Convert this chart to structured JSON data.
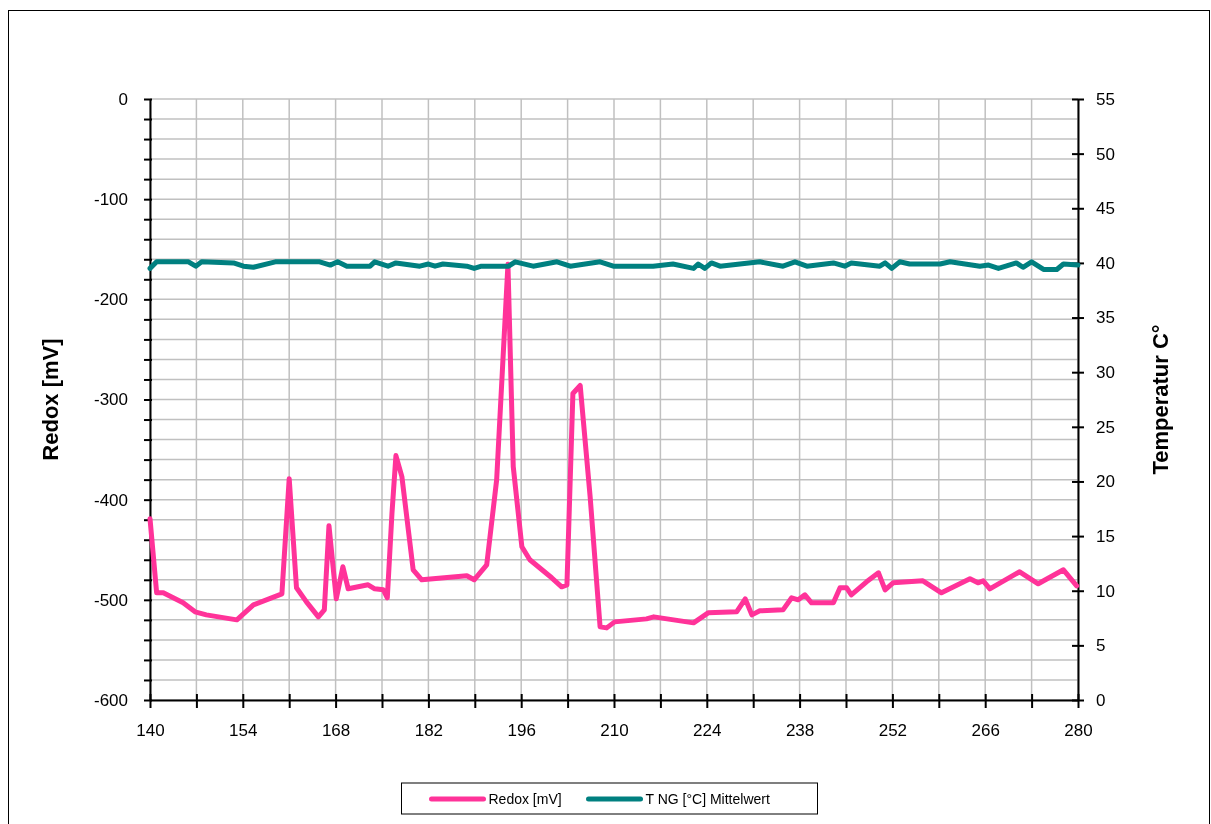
{
  "chart_data": {
    "type": "line",
    "xlabel": null,
    "ylabel": "Redox [mV]",
    "y2label": "Temperatur C°",
    "xlim": [
      140,
      280
    ],
    "xticks": [
      140,
      {
        "value": 147,
        "label": null
      },
      154,
      {
        "value": 161,
        "label": null
      },
      168,
      {
        "value": 175,
        "label": null
      },
      182,
      {
        "value": 189,
        "label": null
      },
      196,
      {
        "value": 203,
        "label": null
      },
      210,
      {
        "value": 217,
        "label": null
      },
      224,
      {
        "value": 231,
        "label": null
      },
      238,
      {
        "value": 245,
        "label": null
      },
      252,
      {
        "value": 259,
        "label": null
      },
      266,
      {
        "value": 273,
        "label": null
      },
      280
    ],
    "ylim": [
      -600,
      0
    ],
    "yticks": [
      -600,
      {
        "value": -580,
        "label": null
      },
      {
        "value": -560,
        "label": null
      },
      {
        "value": -540,
        "label": null
      },
      {
        "value": -520,
        "label": null
      },
      -500,
      {
        "value": -480,
        "label": null
      },
      {
        "value": -460,
        "label": null
      },
      {
        "value": -440,
        "label": null
      },
      {
        "value": -420,
        "label": null
      },
      -400,
      {
        "value": -380,
        "label": null
      },
      {
        "value": -360,
        "label": null
      },
      {
        "value": -340,
        "label": null
      },
      {
        "value": -320,
        "label": null
      },
      -300,
      {
        "value": -280,
        "label": null
      },
      {
        "value": -260,
        "label": null
      },
      {
        "value": -240,
        "label": null
      },
      {
        "value": -220,
        "label": null
      },
      -200,
      {
        "value": -180,
        "label": null
      },
      {
        "value": -160,
        "label": null
      },
      {
        "value": -140,
        "label": null
      },
      {
        "value": -120,
        "label": null
      },
      -100,
      {
        "value": -80,
        "label": null
      },
      {
        "value": -60,
        "label": null
      },
      {
        "value": -40,
        "label": null
      },
      {
        "value": -20,
        "label": null
      },
      0
    ],
    "y2lim": [
      0,
      55
    ],
    "y2ticks": [
      0,
      5,
      10,
      15,
      20,
      25,
      30,
      35,
      40,
      45,
      50,
      55
    ],
    "grid": true,
    "legend": "bottom",
    "line_style": "solid",
    "series": [
      {
        "name": "Redox [mV]",
        "color": "#ff3399",
        "x": [
          140,
          141,
          142,
          145,
          146.8,
          148.5,
          153.1,
          155.6,
          159.9,
          161,
          162.1,
          163.6,
          165.4,
          166.3,
          167,
          168.1,
          169.1,
          169.9,
          172.9,
          173.9,
          175.2,
          175.8,
          176.5,
          177.1,
          178,
          179.7,
          181,
          187.8,
          188.9,
          190.8,
          192.3,
          194,
          194.8,
          196.1,
          197.3,
          200.6,
          202.1,
          202.9,
          203.8,
          204.9,
          206.4,
          207.9,
          208.9,
          210.1,
          214.9,
          216,
          222,
          224.2,
          228.5,
          229.8,
          230.8,
          232,
          235.5,
          236.8,
          237.8,
          238.8,
          239.8,
          243.1,
          244.1,
          245.1,
          245.8,
          248.1,
          249.9,
          250.9,
          252.1,
          256.6,
          259.4,
          263.7,
          264.9,
          265.7,
          266.7,
          271.2,
          274,
          277.8,
          279.8
        ],
        "values": [
          -419,
          -493,
          -493,
          -503,
          -512,
          -515,
          -520,
          -505,
          -494,
          -379,
          -488,
          -502,
          -517,
          -510,
          -426,
          -499,
          -467,
          -489,
          -485,
          -489,
          -490,
          -498,
          -414,
          -356,
          -377,
          -470,
          -480,
          -476,
          -480,
          -465,
          -380,
          -165,
          -367,
          -447,
          -460,
          -478,
          -487,
          -485,
          -294,
          -286,
          -397,
          -527,
          -528,
          -522,
          -519,
          -517,
          -523,
          -513,
          -512,
          -499,
          -515,
          -511,
          -510,
          -498,
          -500,
          -495,
          -503,
          -503,
          -488,
          -488,
          -495,
          -482,
          -473,
          -490,
          -483,
          -481,
          -493,
          -479,
          -483,
          -481,
          -489,
          -472,
          -484,
          -470,
          -486
        ]
      },
      {
        "name": "T NG [°C] Mittelwert",
        "color": "#008080",
        "axis": "y2",
        "x": [
          140,
          141,
          145.8,
          146.9,
          147.8,
          152.6,
          154.1,
          155.6,
          158.9,
          165.6,
          167.2,
          168.3,
          169.7,
          173.2,
          173.9,
          175.9,
          177.1,
          180.7,
          182,
          183,
          184.2,
          187.8,
          188.9,
          190,
          194.1,
          195.1,
          197.8,
          201.4,
          203.4,
          207.9,
          209.9,
          215.9,
          218.9,
          222,
          222.7,
          223.7,
          224.7,
          226,
          232,
          235.5,
          237.3,
          239.1,
          243.1,
          244.8,
          245.8,
          250.1,
          250.9,
          251.9,
          253.1,
          254.6,
          259.2,
          260.7,
          265.2,
          266.5,
          268,
          270.7,
          271.7,
          273,
          274.8,
          276.8,
          277.8,
          280
        ],
        "values": [
          39.5,
          40.1,
          40.1,
          39.7,
          40.1,
          40.0,
          39.7,
          39.6,
          40.1,
          40.1,
          39.8,
          40.1,
          39.7,
          39.7,
          40.1,
          39.7,
          40.0,
          39.7,
          39.9,
          39.7,
          39.9,
          39.7,
          39.5,
          39.7,
          39.7,
          40.1,
          39.7,
          40.1,
          39.7,
          40.1,
          39.7,
          39.7,
          39.9,
          39.5,
          39.9,
          39.5,
          40.0,
          39.7,
          40.1,
          39.7,
          40.1,
          39.7,
          40.0,
          39.7,
          40.0,
          39.7,
          40.0,
          39.5,
          40.1,
          39.9,
          39.9,
          40.1,
          39.7,
          39.8,
          39.5,
          40.0,
          39.6,
          40.1,
          39.4,
          39.4,
          39.9,
          39.8
        ]
      }
    ]
  }
}
